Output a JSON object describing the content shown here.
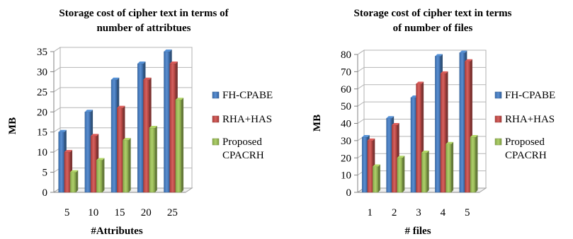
{
  "chart_data": [
    {
      "type": "bar",
      "title_lines": [
        "Storage cost of cipher text in terms of",
        "number of attribtues"
      ],
      "xlabel": "#Attributes",
      "ylabel": "MB",
      "categories": [
        "5",
        "10",
        "15",
        "20",
        "25"
      ],
      "ylim": [
        0,
        35
      ],
      "yticks": [
        0,
        5,
        10,
        15,
        20,
        25,
        30,
        35
      ],
      "grid": true,
      "legend_position": "right",
      "series": [
        {
          "name": "FH-CPABE",
          "legend_lines": [
            "FH-CPABE"
          ],
          "color": "#4A7EBB",
          "values": [
            15,
            20,
            28,
            32,
            35
          ]
        },
        {
          "name": "RHA+HAS",
          "legend_lines": [
            "RHA+HAS"
          ],
          "color": "#C0504D",
          "values": [
            10,
            14,
            21,
            28,
            32
          ]
        },
        {
          "name": "Proposed CPACRH",
          "legend_lines": [
            "Proposed",
            "CPACRH"
          ],
          "color": "#9BBB59",
          "values": [
            5,
            8,
            13,
            16,
            23
          ]
        }
      ]
    },
    {
      "type": "bar",
      "title_lines": [
        "Storage cost of cipher text in terms",
        "of number of files"
      ],
      "xlabel": "# files",
      "ylabel": "MB",
      "categories": [
        "1",
        "2",
        "3",
        "4",
        "5"
      ],
      "ylim": [
        0,
        80
      ],
      "yticks": [
        0,
        10,
        20,
        30,
        40,
        50,
        60,
        70,
        80
      ],
      "grid": true,
      "legend_position": "right",
      "series": [
        {
          "name": "FH-CPABE",
          "legend_lines": [
            "FH-CPABE"
          ],
          "color": "#4A7EBB",
          "values": [
            32,
            43,
            55,
            79,
            81
          ]
        },
        {
          "name": "RHA+HAS",
          "legend_lines": [
            "RHA+HAS"
          ],
          "color": "#C0504D",
          "values": [
            30,
            39,
            63,
            69,
            76
          ]
        },
        {
          "name": "Proposed CPACRH",
          "legend_lines": [
            "Proposed",
            "CPACRH"
          ],
          "color": "#9BBB59",
          "values": [
            15,
            20,
            23,
            28,
            32
          ]
        }
      ]
    }
  ]
}
